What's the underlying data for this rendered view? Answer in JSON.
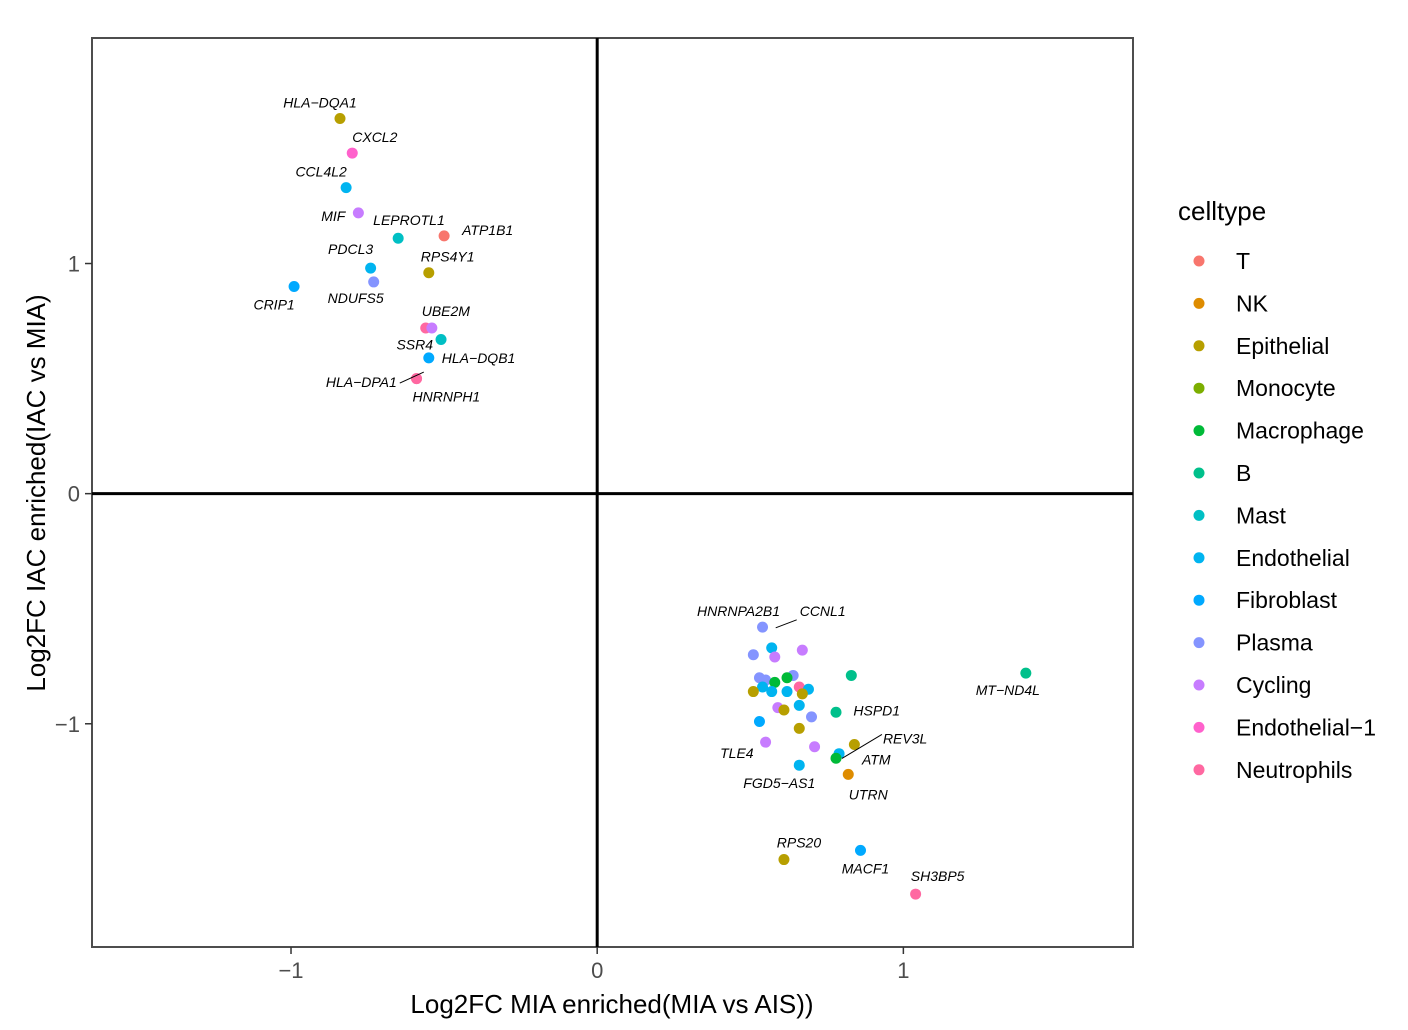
{
  "chart_data": {
    "type": "scatter",
    "xlabel": "Log2FC MIA enriched(MIA vs AIS))",
    "ylabel": "Log2FC IAC enriched(IAC vs MIA)",
    "xlim": [
      -1.65,
      1.75
    ],
    "ylim": [
      -1.97,
      1.98
    ],
    "xticks": [
      -1,
      0,
      1
    ],
    "yticks": [
      -1,
      0,
      1
    ],
    "xtick_labels": [
      "−1",
      "0",
      "1"
    ],
    "ytick_labels": [
      "−1",
      "0",
      "1"
    ],
    "reference_lines": {
      "x": 0,
      "y": 0
    },
    "grid": false,
    "legend": {
      "title": "celltype",
      "placement": "right",
      "items": [
        {
          "name": "T",
          "color": "#F8766D"
        },
        {
          "name": "NK",
          "color": "#DE8C00"
        },
        {
          "name": "Epithelial",
          "color": "#B79F00"
        },
        {
          "name": "Monocyte",
          "color": "#7CAE00"
        },
        {
          "name": "Macrophage",
          "color": "#00BA38"
        },
        {
          "name": "B",
          "color": "#00C08B"
        },
        {
          "name": "Mast",
          "color": "#00BFC4"
        },
        {
          "name": "Endothelial",
          "color": "#00B4F0"
        },
        {
          "name": "Fibroblast",
          "color": "#00A9FF"
        },
        {
          "name": "Plasma",
          "color": "#8494FF"
        },
        {
          "name": "Cycling",
          "color": "#C77CFF"
        },
        {
          "name": "Endothelial−1",
          "color": "#FF61CC"
        },
        {
          "name": "Neutrophils",
          "color": "#FF68A1"
        }
      ]
    },
    "points": [
      {
        "x": -0.84,
        "y": 1.63,
        "celltype": "Epithelial",
        "label": "HLA−DQA1"
      },
      {
        "x": -0.8,
        "y": 1.48,
        "celltype": "Endothelial−1",
        "label": "CXCL2"
      },
      {
        "x": -0.82,
        "y": 1.33,
        "celltype": "Endothelial",
        "label": "CCL4L2"
      },
      {
        "x": -0.78,
        "y": 1.22,
        "celltype": "Cycling",
        "label": "MIF"
      },
      {
        "x": -0.65,
        "y": 1.11,
        "celltype": "Mast",
        "label": "LEPROTL1"
      },
      {
        "x": -0.5,
        "y": 1.12,
        "celltype": "T",
        "label": "ATP1B1"
      },
      {
        "x": -0.74,
        "y": 0.98,
        "celltype": "Endothelial",
        "label": "PDCL3"
      },
      {
        "x": -0.55,
        "y": 0.96,
        "celltype": "Epithelial",
        "label": "RPS4Y1"
      },
      {
        "x": -0.73,
        "y": 0.92,
        "celltype": "Plasma",
        "label": "NDUFS5"
      },
      {
        "x": -0.99,
        "y": 0.9,
        "celltype": "Fibroblast",
        "label": "CRIP1"
      },
      {
        "x": -0.56,
        "y": 0.72,
        "celltype": "Neutrophils",
        "label": "UBE2M"
      },
      {
        "x": -0.54,
        "y": 0.72,
        "celltype": "Cycling",
        "label": ""
      },
      {
        "x": -0.51,
        "y": 0.67,
        "celltype": "Mast",
        "label": "SSR4"
      },
      {
        "x": -0.55,
        "y": 0.59,
        "celltype": "Fibroblast",
        "label": "HLA−DQB1"
      },
      {
        "x": -0.59,
        "y": 0.5,
        "celltype": "Neutrophils",
        "label": "HLA−DPA1"
      },
      {
        "x": -0.59,
        "y": 0.5,
        "celltype": "Neutrophils",
        "label": "HNRNPH1"
      },
      {
        "x": 0.54,
        "y": -0.58,
        "celltype": "Plasma",
        "label": "HNRNPA2B1"
      },
      {
        "x": 0.57,
        "y": -0.67,
        "celltype": "Endothelial",
        "label": "CCNL1"
      },
      {
        "x": 0.51,
        "y": -0.7,
        "celltype": "Plasma",
        "label": ""
      },
      {
        "x": 0.67,
        "y": -0.68,
        "celltype": "Cycling",
        "label": ""
      },
      {
        "x": 0.58,
        "y": -0.71,
        "celltype": "Cycling",
        "label": ""
      },
      {
        "x": 0.83,
        "y": -0.79,
        "celltype": "B",
        "label": ""
      },
      {
        "x": 1.4,
        "y": -0.78,
        "celltype": "B",
        "label": "MT−ND4L"
      },
      {
        "x": 0.64,
        "y": -0.79,
        "celltype": "Plasma",
        "label": ""
      },
      {
        "x": 0.62,
        "y": -0.8,
        "celltype": "Macrophage",
        "label": ""
      },
      {
        "x": 0.53,
        "y": -0.8,
        "celltype": "Plasma",
        "label": ""
      },
      {
        "x": 0.55,
        "y": -0.81,
        "celltype": "Plasma",
        "label": ""
      },
      {
        "x": 0.58,
        "y": -0.82,
        "celltype": "Macrophage",
        "label": ""
      },
      {
        "x": 0.54,
        "y": -0.84,
        "celltype": "Endothelial",
        "label": ""
      },
      {
        "x": 0.66,
        "y": -0.84,
        "celltype": "Neutrophils",
        "label": ""
      },
      {
        "x": 0.51,
        "y": -0.86,
        "celltype": "Epithelial",
        "label": ""
      },
      {
        "x": 0.57,
        "y": -0.86,
        "celltype": "Endothelial",
        "label": ""
      },
      {
        "x": 0.62,
        "y": -0.86,
        "celltype": "Endothelial",
        "label": ""
      },
      {
        "x": 0.69,
        "y": -0.85,
        "celltype": "Endothelial",
        "label": ""
      },
      {
        "x": 0.67,
        "y": -0.87,
        "celltype": "Epithelial",
        "label": ""
      },
      {
        "x": 0.59,
        "y": -0.93,
        "celltype": "Cycling",
        "label": ""
      },
      {
        "x": 0.61,
        "y": -0.94,
        "celltype": "Epithelial",
        "label": ""
      },
      {
        "x": 0.66,
        "y": -0.92,
        "celltype": "Endothelial",
        "label": ""
      },
      {
        "x": 0.78,
        "y": -0.95,
        "celltype": "B",
        "label": "REV3L"
      },
      {
        "x": 0.7,
        "y": -0.97,
        "celltype": "Plasma",
        "label": ""
      },
      {
        "x": 0.53,
        "y": -0.99,
        "celltype": "Fibroblast",
        "label": ""
      },
      {
        "x": 0.66,
        "y": -1.02,
        "celltype": "Epithelial",
        "label": ""
      },
      {
        "x": 0.55,
        "y": -1.08,
        "celltype": "Cycling",
        "label": "TLE4"
      },
      {
        "x": 0.71,
        "y": -1.1,
        "celltype": "Cycling",
        "label": ""
      },
      {
        "x": 0.84,
        "y": -1.09,
        "celltype": "Epithelial",
        "label": "HSPD1"
      },
      {
        "x": 0.79,
        "y": -1.13,
        "celltype": "Endothelial",
        "label": ""
      },
      {
        "x": 0.78,
        "y": -1.15,
        "celltype": "Macrophage",
        "label": "ATM"
      },
      {
        "x": 0.66,
        "y": -1.18,
        "celltype": "Endothelial",
        "label": "FGD5−AS1"
      },
      {
        "x": 0.82,
        "y": -1.22,
        "celltype": "NK",
        "label": "UTRN"
      },
      {
        "x": 0.61,
        "y": -1.59,
        "celltype": "Epithelial",
        "label": "RPS20"
      },
      {
        "x": 0.86,
        "y": -1.55,
        "celltype": "Fibroblast",
        "label": "MACF1"
      },
      {
        "x": 1.04,
        "y": -1.74,
        "celltype": "Neutrophils",
        "label": "SH3BP5"
      }
    ]
  }
}
